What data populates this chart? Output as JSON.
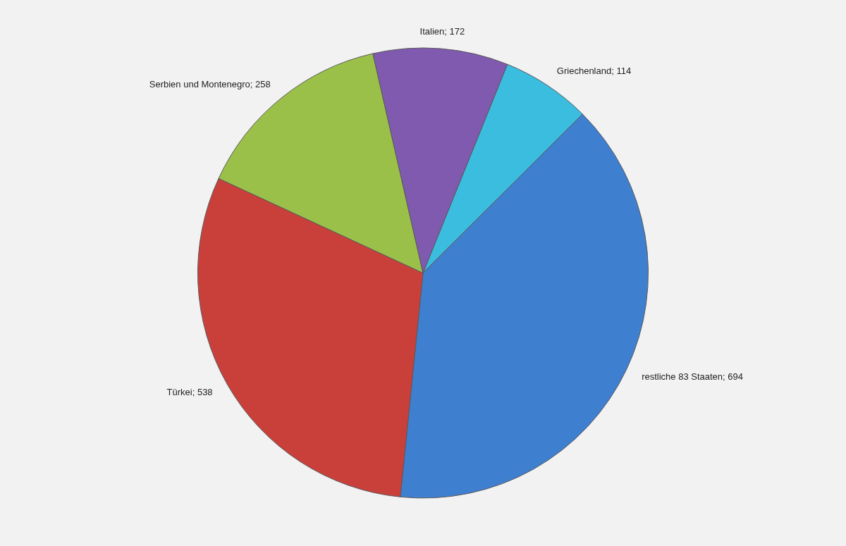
{
  "chart_data": {
    "type": "pie",
    "categories": [
      "Griechenland",
      "restliche 83 Staaten",
      "Türkei",
      "Serbien und Montenegro",
      "Italien"
    ],
    "values": [
      114,
      694,
      538,
      258,
      172
    ],
    "colors": [
      "#3bbde0",
      "#3f7fcf",
      "#c9403b",
      "#9bc04a",
      "#7f5aae"
    ],
    "value_labels": [
      "; 114",
      "; 694",
      "; 538",
      "; 258",
      "; 172"
    ],
    "legend": false
  }
}
